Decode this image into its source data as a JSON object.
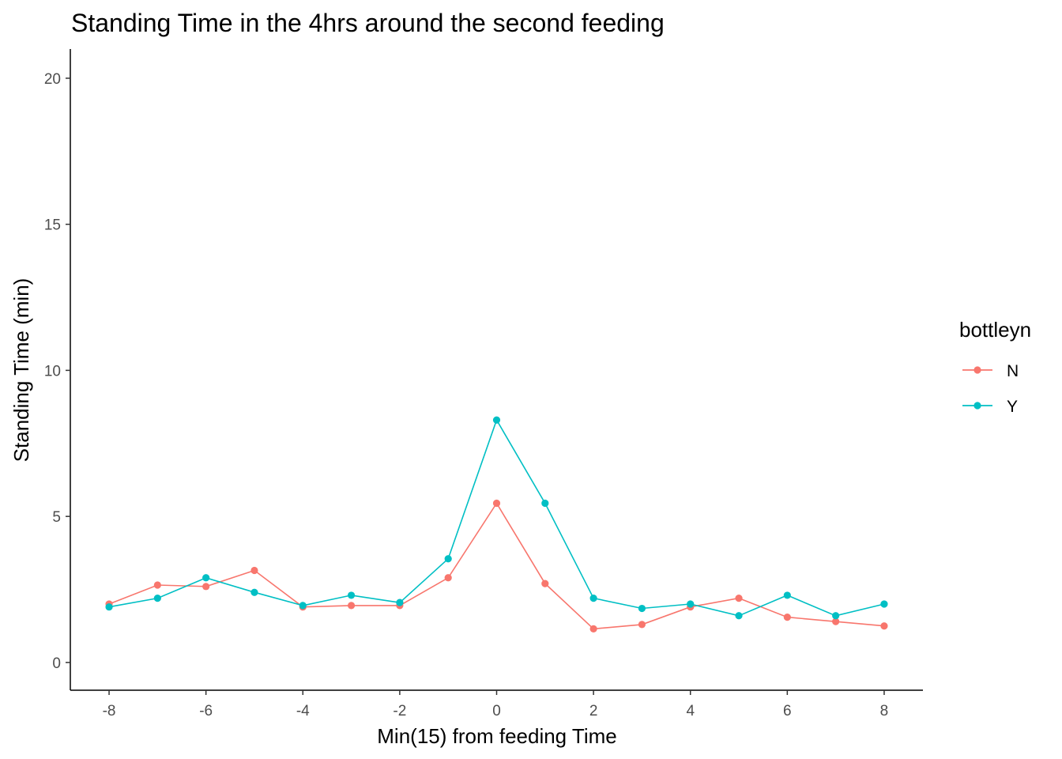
{
  "chart_data": {
    "type": "line",
    "title": "Standing Time in the 4hrs around the second feeding",
    "xlabel": "Min(15) from feeding Time",
    "ylabel": "Standing Time (min)",
    "x": [
      -8,
      -7,
      -6,
      -5,
      -4,
      -3,
      -2,
      -1,
      0,
      1,
      2,
      3,
      4,
      5,
      6,
      7,
      8
    ],
    "xlim": [
      -8.8,
      8.8
    ],
    "ylim": [
      -0.95,
      21.0
    ],
    "xticks": [
      -8,
      -6,
      -4,
      -2,
      0,
      2,
      4,
      6,
      8
    ],
    "yticks": [
      0,
      5,
      10,
      15,
      20
    ],
    "grid": false,
    "legend": {
      "title": "bottleyn",
      "placement": "right"
    },
    "series": [
      {
        "name": "N",
        "color": "#F8766D",
        "values": [
          2.0,
          2.65,
          2.6,
          3.15,
          1.9,
          1.95,
          1.95,
          2.9,
          5.45,
          2.7,
          1.15,
          1.3,
          1.9,
          2.2,
          1.55,
          1.4,
          1.25
        ]
      },
      {
        "name": "Y",
        "color": "#00BFC4",
        "values": [
          1.9,
          2.2,
          2.9,
          2.4,
          1.95,
          2.3,
          2.05,
          3.55,
          8.3,
          5.45,
          2.2,
          1.85,
          2.0,
          1.6,
          2.3,
          1.6,
          2.0
        ]
      }
    ]
  }
}
